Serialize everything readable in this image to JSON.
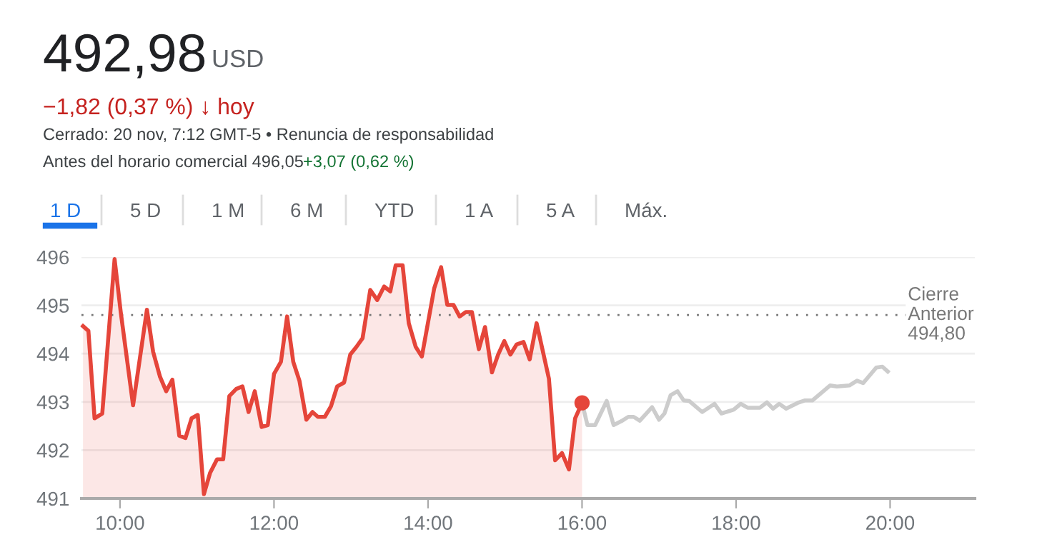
{
  "chart_data": {
    "type": "area",
    "title": "492,98",
    "annotations": [
      "USD",
      "−1,82 (0,37 %) ↓ hoy",
      "Cerrado: 20 nov, 7:12 GMT-5 • Renuncia de responsabilidad",
      "Antes del horario comercial 496,05",
      "+3,07 (0,62 %)",
      "1 D",
      "5 D",
      "1 M",
      "6 M",
      "YTD",
      "1 A",
      "5 A",
      "Máx."
    ],
    "series": [
      {
        "color": "#e5453a",
        "x": [
          9.52,
          9.59,
          9.67,
          9.77,
          9.93,
          10.01,
          10.17,
          10.35,
          10.43,
          10.52,
          10.6,
          10.68,
          10.77,
          10.85,
          10.93,
          11.01,
          11.09,
          11.17,
          11.26,
          11.34,
          11.42,
          11.51,
          11.59,
          11.67,
          11.75,
          11.84,
          11.92,
          12.0,
          12.09,
          12.17,
          12.25,
          12.33,
          12.42,
          12.5,
          12.57,
          12.66,
          12.74,
          12.82,
          12.91,
          12.99,
          13.07,
          13.15,
          13.25,
          13.34,
          13.43,
          13.51,
          13.58,
          13.67,
          13.75,
          13.84,
          13.92,
          14.08,
          14.17,
          14.25,
          14.33,
          14.41,
          14.49,
          14.57,
          14.66,
          14.74,
          14.83,
          14.91,
          14.99,
          15.07,
          15.15,
          15.24,
          15.32,
          15.41,
          15.57,
          15.65,
          15.74,
          15.83,
          15.91,
          16.0
        ],
        "values": [
          494.57,
          494.47,
          492.66,
          492.76,
          495.96,
          494.86,
          492.93,
          494.91,
          494.04,
          493.52,
          493.22,
          493.46,
          492.3,
          492.25,
          492.66,
          492.73,
          491.09,
          491.53,
          491.81,
          491.81,
          493.12,
          493.27,
          493.32,
          492.79,
          493.22,
          492.48,
          492.52,
          493.58,
          493.83,
          494.77,
          493.83,
          493.44,
          492.63,
          492.79,
          492.69,
          492.69,
          492.91,
          493.32,
          493.4,
          493.98,
          494.14,
          494.32,
          495.32,
          495.11,
          495.39,
          495.29,
          495.83,
          495.83,
          494.63,
          494.14,
          493.94,
          495.35,
          495.79,
          495.01,
          495.01,
          494.77,
          494.86,
          494.86,
          494.09,
          494.55,
          493.61,
          493.98,
          494.26,
          493.98,
          494.19,
          494.24,
          493.88,
          494.63,
          493.48,
          491.79,
          491.94,
          491.6,
          492.66,
          492.98
        ]
      },
      {
        "type": "line",
        "color": "#cccccc",
        "x": [
          16.0,
          16.07,
          16.17,
          16.32,
          16.41,
          16.51,
          16.6,
          16.67,
          16.75,
          16.91,
          17.0,
          17.07,
          17.15,
          17.24,
          17.32,
          17.39,
          17.56,
          17.72,
          17.81,
          17.97,
          18.06,
          18.15,
          18.31,
          18.4,
          18.48,
          18.56,
          18.65,
          18.8,
          18.89,
          18.99,
          19.22,
          19.31,
          19.47,
          19.57,
          19.65,
          19.82,
          19.9,
          19.97
        ],
        "values": [
          492.98,
          492.52,
          492.52,
          493.02,
          492.52,
          492.6,
          492.69,
          492.69,
          492.61,
          492.89,
          492.63,
          492.76,
          493.14,
          493.22,
          493.03,
          493.02,
          492.79,
          492.96,
          492.76,
          492.84,
          492.96,
          492.88,
          492.88,
          492.99,
          492.86,
          492.96,
          492.86,
          492.98,
          493.03,
          493.03,
          493.34,
          493.32,
          493.34,
          493.44,
          493.39,
          493.71,
          493.73,
          493.63
        ]
      },
      {
        "type": "scatter",
        "color": "#e5453a",
        "marker": "circle",
        "x": [
          16.0
        ],
        "values": [
          492.98
        ]
      }
    ],
    "ref_lines": [
      {
        "axis": "y",
        "value": 494.8,
        "label": "Cierre\nAnterior\n494,80",
        "color": "#777777",
        "line_style": "dotted"
      }
    ],
    "xlim": [
      9.5,
      21.1
    ],
    "xticks": [
      {
        "value": 10,
        "label": "10:00"
      },
      {
        "value": 12,
        "label": "12:00"
      },
      {
        "value": 14,
        "label": "14:00"
      },
      {
        "value": 16,
        "label": "16:00"
      },
      {
        "value": 18,
        "label": "18:00"
      },
      {
        "value": 20,
        "label": "20:00"
      }
    ],
    "ylim": [
      491,
      496
    ],
    "yticks": [
      491,
      492,
      493,
      494,
      495,
      496
    ],
    "grid": "y"
  }
}
